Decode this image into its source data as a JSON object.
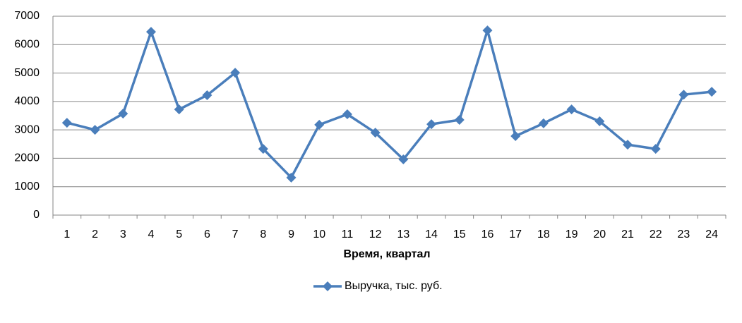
{
  "chart_data": {
    "type": "line",
    "x_label": "Время, квартал",
    "categories": [
      "1",
      "2",
      "3",
      "4",
      "5",
      "6",
      "7",
      "8",
      "9",
      "10",
      "11",
      "12",
      "13",
      "14",
      "15",
      "16",
      "17",
      "18",
      "19",
      "20",
      "21",
      "22",
      "23",
      "24"
    ],
    "series": [
      {
        "name": "Выручка, тыс. руб.",
        "color": "#4a7ebb",
        "values": [
          3250,
          3000,
          3570,
          6450,
          3720,
          4220,
          5010,
          2330,
          1320,
          3180,
          3550,
          2900,
          1960,
          3200,
          3350,
          6500,
          2780,
          3230,
          3720,
          3300,
          2480,
          2330,
          4240,
          4340
        ]
      }
    ],
    "ylim": [
      0,
      7000
    ],
    "yticks": [
      0,
      1000,
      2000,
      3000,
      4000,
      5000,
      6000,
      7000
    ],
    "grid": true,
    "legend": "bottom"
  }
}
